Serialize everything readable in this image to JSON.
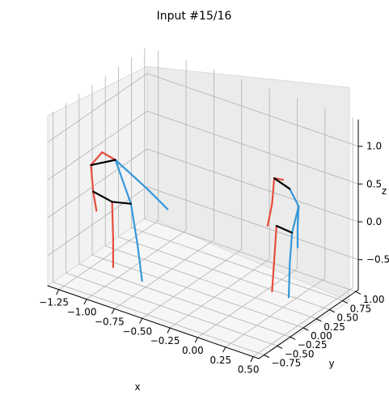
{
  "title": "Input #15/16",
  "colors": {
    "left": "#e74c3c",
    "right": "#3498db",
    "spine": "#000000",
    "grid": "#b0b0b0"
  },
  "chart_data": {
    "type": "3d-line",
    "title": "Input #15/16",
    "xlabel": "x",
    "ylabel": "y",
    "zlabel": "z",
    "x_ticks": [
      "−1.25",
      "−1.00",
      "−0.75",
      "−0.50",
      "−0.25",
      "0.00",
      "0.25",
      "0.50"
    ],
    "y_ticks": [
      "−0.75",
      "−0.50",
      "−0.25",
      "0.00",
      "0.25",
      "0.50",
      "0.75",
      "1.00"
    ],
    "z_ticks": [
      "−0.5",
      "0.0",
      "0.5",
      "1.0"
    ],
    "xlim": [
      -1.35,
      0.55
    ],
    "ylim": [
      -0.85,
      1.05
    ],
    "zlim": [
      -0.9,
      1.35
    ],
    "grid": true,
    "figures": [
      {
        "name": "figure-1",
        "bones": [
          {
            "kind": "right",
            "points": [
              [
                -1.0,
                -0.3,
                0.68
              ],
              [
                -0.71,
                -0.31,
                0.45
              ]
            ]
          },
          {
            "kind": "right",
            "points": [
              [
                -0.71,
                -0.31,
                0.45
              ],
              [
                -0.52,
                -0.32,
                0.28
              ]
            ]
          },
          {
            "kind": "right",
            "points": [
              [
                -1.0,
                -0.3,
                0.68
              ],
              [
                -0.86,
                -0.3,
                0.17
              ]
            ]
          },
          {
            "kind": "right",
            "points": [
              [
                -0.86,
                -0.3,
                0.17
              ],
              [
                -0.8,
                -0.3,
                -0.35
              ]
            ]
          },
          {
            "kind": "right",
            "points": [
              [
                -0.8,
                -0.3,
                -0.35
              ],
              [
                -0.76,
                -0.3,
                -0.8
              ]
            ]
          },
          {
            "kind": "left",
            "points": [
              [
                -1.0,
                -0.3,
                0.68
              ],
              [
                -1.12,
                -0.3,
                0.72
              ]
            ]
          },
          {
            "kind": "left",
            "points": [
              [
                -1.12,
                -0.3,
                0.72
              ],
              [
                -1.22,
                -0.3,
                0.5
              ]
            ]
          },
          {
            "kind": "left",
            "points": [
              [
                -1.22,
                -0.3,
                0.5
              ],
              [
                -1.2,
                -0.3,
                0.16
              ]
            ]
          },
          {
            "kind": "left",
            "points": [
              [
                -1.2,
                -0.3,
                0.16
              ],
              [
                -1.17,
                -0.3,
                -0.08
              ]
            ]
          },
          {
            "kind": "left",
            "points": [
              [
                -1.03,
                -0.3,
                0.11
              ],
              [
                -1.02,
                -0.3,
                -0.36
              ]
            ]
          },
          {
            "kind": "left",
            "points": [
              [
                -1.02,
                -0.3,
                -0.36
              ],
              [
                -1.02,
                -0.3,
                -0.75
              ]
            ]
          },
          {
            "kind": "spine",
            "points": [
              [
                -1.22,
                -0.3,
                0.5
              ],
              [
                -1.0,
                -0.3,
                0.68
              ]
            ]
          },
          {
            "kind": "spine",
            "points": [
              [
                -1.03,
                -0.3,
                0.11
              ],
              [
                -0.86,
                -0.3,
                0.17
              ]
            ]
          },
          {
            "kind": "spine",
            "points": [
              [
                -1.2,
                -0.3,
                0.16
              ],
              [
                -1.03,
                -0.3,
                0.11
              ]
            ]
          }
        ]
      },
      {
        "name": "figure-2",
        "bones": [
          {
            "kind": "right",
            "points": [
              [
                0.24,
                0.4,
                0.59
              ],
              [
                0.32,
                0.4,
                0.4
              ]
            ]
          },
          {
            "kind": "right",
            "points": [
              [
                0.32,
                0.4,
                0.4
              ],
              [
                0.31,
                0.4,
                0.12
              ]
            ]
          },
          {
            "kind": "right",
            "points": [
              [
                0.31,
                0.4,
                0.12
              ],
              [
                0.31,
                0.4,
                -0.15
              ]
            ]
          },
          {
            "kind": "right",
            "points": [
              [
                0.32,
                0.4,
                0.4
              ],
              [
                0.26,
                0.4,
                0.02
              ]
            ]
          },
          {
            "kind": "right",
            "points": [
              [
                0.26,
                0.4,
                0.02
              ],
              [
                0.24,
                0.4,
                -0.4
              ]
            ]
          },
          {
            "kind": "right",
            "points": [
              [
                0.24,
                0.4,
                -0.4
              ],
              [
                0.23,
                0.4,
                -0.85
              ]
            ]
          },
          {
            "kind": "left",
            "points": [
              [
                0.1,
                0.4,
                0.66
              ],
              [
                0.18,
                0.4,
                0.68
              ]
            ]
          },
          {
            "kind": "left",
            "points": [
              [
                0.1,
                0.4,
                0.66
              ],
              [
                0.08,
                0.4,
                0.31
              ]
            ]
          },
          {
            "kind": "left",
            "points": [
              [
                0.08,
                0.4,
                0.31
              ],
              [
                0.04,
                0.4,
                0.0
              ]
            ]
          },
          {
            "kind": "left",
            "points": [
              [
                0.12,
                0.4,
                0.04
              ],
              [
                0.1,
                0.4,
                -0.42
              ]
            ]
          },
          {
            "kind": "left",
            "points": [
              [
                0.1,
                0.4,
                -0.42
              ],
              [
                0.08,
                0.4,
                -0.85
              ]
            ]
          },
          {
            "kind": "spine",
            "points": [
              [
                0.1,
                0.4,
                0.66
              ],
              [
                0.24,
                0.4,
                0.59
              ]
            ]
          },
          {
            "kind": "spine",
            "points": [
              [
                0.12,
                0.4,
                0.04
              ],
              [
                0.26,
                0.4,
                0.02
              ]
            ]
          }
        ]
      }
    ]
  }
}
